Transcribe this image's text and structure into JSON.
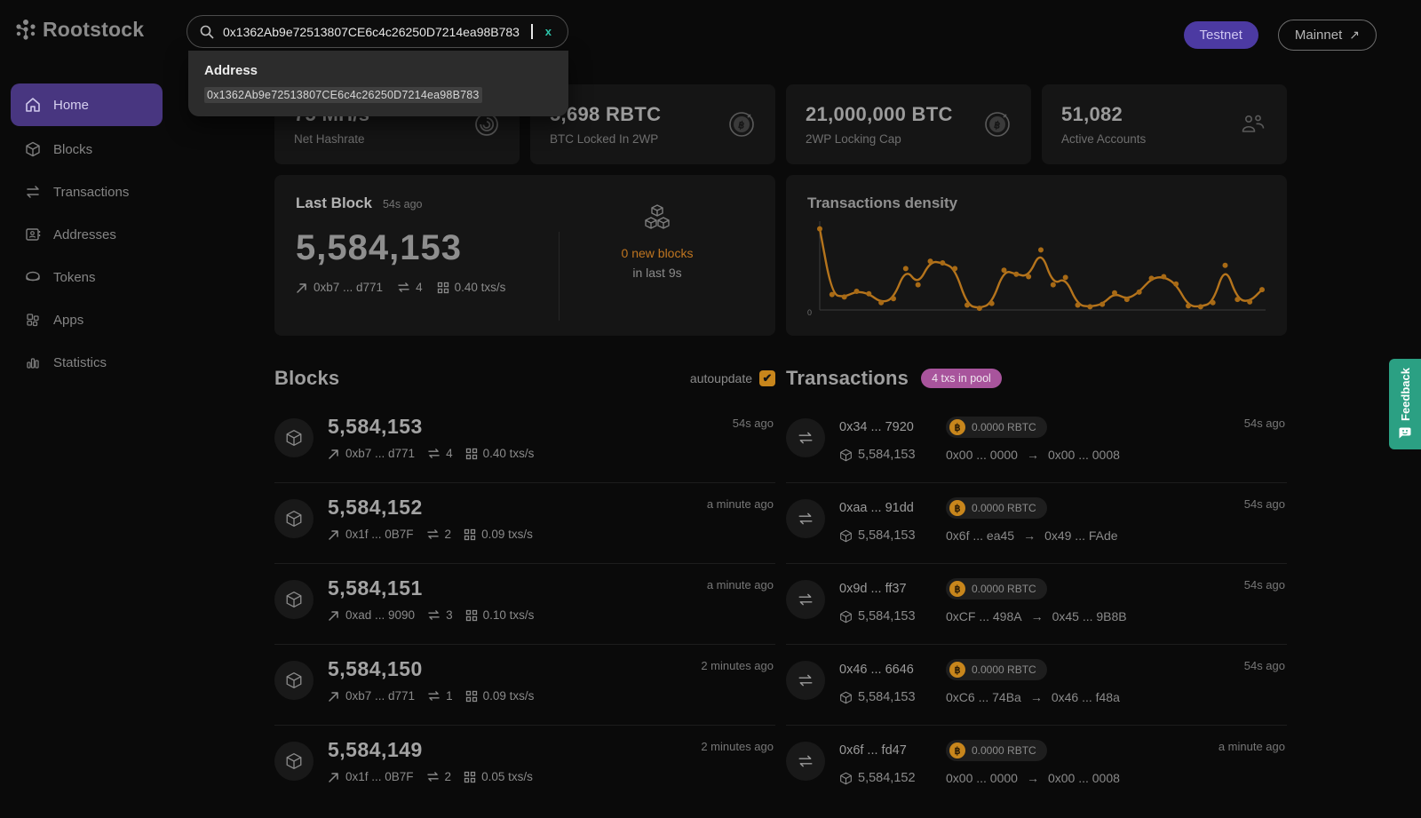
{
  "brand": {
    "name": "Rootstock"
  },
  "header": {
    "search": {
      "value": "0x1362Ab9e72513807CE6c4c26250D7214ea98B783",
      "clear_label": "x"
    },
    "suggestion": {
      "title": "Address",
      "value": "0x1362Ab9e72513807CE6c4c26250D7214ea98B783"
    },
    "testnet_label": "Testnet",
    "mainnet_label": "Mainnet",
    "mainnet_arrow": "↗"
  },
  "nav": {
    "items": [
      {
        "label": "Home",
        "icon": "home-icon",
        "active": true
      },
      {
        "label": "Blocks",
        "icon": "cube-icon",
        "active": false
      },
      {
        "label": "Transactions",
        "icon": "swap-icon",
        "active": false
      },
      {
        "label": "Addresses",
        "icon": "contact-card-icon",
        "active": false
      },
      {
        "label": "Tokens",
        "icon": "coin-icon",
        "active": false
      },
      {
        "label": "Apps",
        "icon": "apps-grid-icon",
        "active": false
      },
      {
        "label": "Statistics",
        "icon": "bar-chart-icon",
        "active": false
      }
    ]
  },
  "stats": {
    "cards": [
      {
        "value": "75 MH/s",
        "label": "Net Hashrate",
        "icon": "gauge-icon"
      },
      {
        "value": "5,698 RBTC",
        "label": "BTC Locked In 2WP",
        "icon": "bitcoin-icon"
      },
      {
        "value": "21,000,000 BTC",
        "label": "2WP Locking Cap",
        "icon": "bitcoin-icon"
      },
      {
        "value": "51,082",
        "label": "Active Accounts",
        "icon": "people-icon"
      }
    ]
  },
  "last_block": {
    "title": "Last Block",
    "time_ago": "54s ago",
    "number": "5,584,153",
    "hash": "0xb7 ... d771",
    "tx_count": "4",
    "rate": "0.40 txs/s",
    "new_blocks_line1": "0 new blocks",
    "new_blocks_line2": "in last 9s",
    "cubes_icon": "blocks-stack-icon"
  },
  "chart_data": {
    "type": "line",
    "title": "Transactions density",
    "xlabel": "",
    "ylabel": "",
    "ylim": [
      0,
      1.05
    ],
    "y_tick_labels": [
      "0"
    ],
    "grid": false,
    "legend": false,
    "line_color": "#b5741c",
    "point_color": "#a86a15",
    "values": [
      1.0,
      0.19,
      0.16,
      0.23,
      0.2,
      0.09,
      0.14,
      0.51,
      0.31,
      0.6,
      0.58,
      0.51,
      0.06,
      0.02,
      0.08,
      0.49,
      0.44,
      0.41,
      0.74,
      0.31,
      0.4,
      0.06,
      0.04,
      0.07,
      0.21,
      0.13,
      0.22,
      0.39,
      0.41,
      0.32,
      0.05,
      0.04,
      0.09,
      0.55,
      0.13,
      0.1,
      0.25
    ]
  },
  "blocks_section": {
    "title": "Blocks",
    "autoupdate_label": "autoupdate",
    "autoupdate_checked": "✔",
    "rows": [
      {
        "number": "5,584,153",
        "time_ago": "54s ago",
        "hash": "0xb7 ... d771",
        "tx_count": "4",
        "rate": "0.40 txs/s"
      },
      {
        "number": "5,584,152",
        "time_ago": "a minute ago",
        "hash": "0x1f ... 0B7F",
        "tx_count": "2",
        "rate": "0.09 txs/s"
      },
      {
        "number": "5,584,151",
        "time_ago": "a minute ago",
        "hash": "0xad ... 9090",
        "tx_count": "3",
        "rate": "0.10 txs/s"
      },
      {
        "number": "5,584,150",
        "time_ago": "2 minutes ago",
        "hash": "0xb7 ... d771",
        "tx_count": "1",
        "rate": "0.09 txs/s"
      },
      {
        "number": "5,584,149",
        "time_ago": "2 minutes ago",
        "hash": "0x1f ... 0B7F",
        "tx_count": "2",
        "rate": "0.05 txs/s"
      }
    ]
  },
  "transactions_section": {
    "title": "Transactions",
    "pool_badge": "4 txs in pool",
    "arrow": "→",
    "rows": [
      {
        "hash": "0x34 ... 7920",
        "value": "0.0000 RBTC",
        "block": "5,584,153",
        "from": "0x00 ... 0000",
        "to": "0x00 ... 0008",
        "time_ago": "54s ago"
      },
      {
        "hash": "0xaa ... 91dd",
        "value": "0.0000 RBTC",
        "block": "5,584,153",
        "from": "0x6f ... ea45",
        "to": "0x49 ... FAde",
        "time_ago": "54s ago"
      },
      {
        "hash": "0x9d ... ff37",
        "value": "0.0000 RBTC",
        "block": "5,584,153",
        "from": "0xCF ... 498A",
        "to": "0x45 ... 9B8B",
        "time_ago": "54s ago"
      },
      {
        "hash": "0x46 ... 6646",
        "value": "0.0000 RBTC",
        "block": "5,584,153",
        "from": "0xC6 ... 74Ba",
        "to": "0x46 ... f48a",
        "time_ago": "54s ago"
      },
      {
        "hash": "0x6f ... fd47",
        "value": "0.0000 RBTC",
        "block": "5,584,152",
        "from": "0x00 ... 0000",
        "to": "0x00 ... 0008",
        "time_ago": "a minute ago"
      }
    ]
  },
  "feedback": {
    "label": "Feedback"
  },
  "colors": {
    "accent_purple": "#4c3aa2",
    "accent_orange": "#c8861c",
    "accent_pink": "#a8549c",
    "accent_teal": "#2ba083",
    "new_blocks_orange": "#bf7520"
  }
}
